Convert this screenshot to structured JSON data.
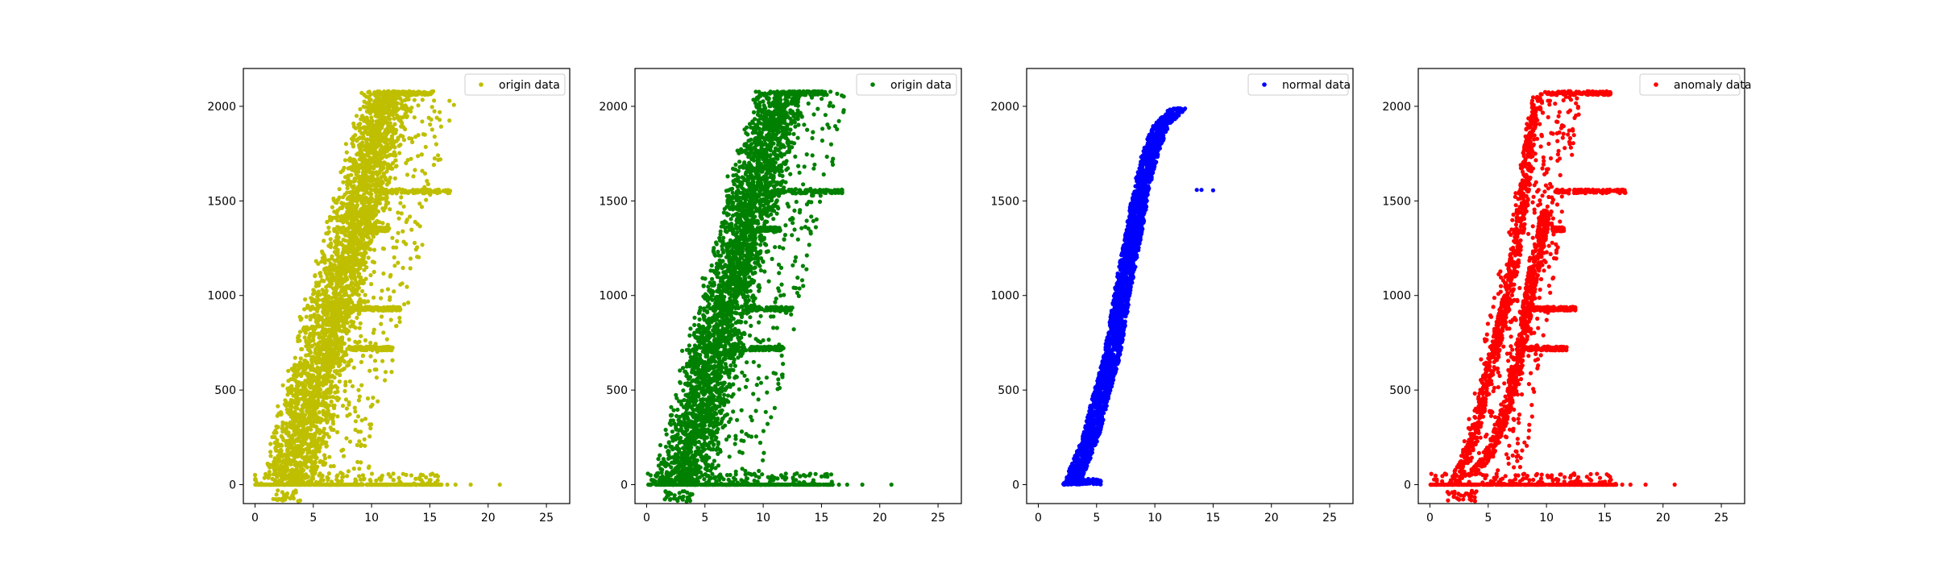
{
  "chart_data": [
    {
      "type": "scatter",
      "color": "#bfbf00",
      "legend": {
        "label": "origin data",
        "placement": "upper-right"
      },
      "xlim": [
        -1,
        27
      ],
      "ylim": [
        -100,
        2200
      ],
      "xticks": [
        0,
        5,
        10,
        15,
        20,
        25
      ],
      "yticks": [
        0,
        500,
        1000,
        1500,
        2000
      ],
      "grid": false,
      "series": [
        {
          "name": "origin data",
          "band": {
            "x_left_at_0": 0,
            "x_left_at_top": 9,
            "x_right_at_0": 6,
            "x_right_at_top": 14,
            "y_top": 2080
          },
          "zero_row": {
            "y": 0,
            "x_from": 0,
            "x_to": 16
          },
          "sparse_zero_x": [
            16.5,
            17.2,
            18.5,
            21.0
          ],
          "stripes": [
            {
              "y": 2070,
              "x_from": 10.5,
              "x_to": 15.3
            },
            {
              "y": 1550,
              "x_from": 10.5,
              "x_to": 16.8
            },
            {
              "y": 1350,
              "x_from": 9.5,
              "x_to": 11.5
            },
            {
              "y": 930,
              "x_from": 8.5,
              "x_to": 12.5
            },
            {
              "y": 720,
              "x_from": 8.0,
              "x_to": 11.8
            }
          ]
        }
      ]
    },
    {
      "type": "scatter",
      "color": "#008000",
      "legend": {
        "label": "origin data",
        "placement": "upper-right"
      },
      "xlim": [
        -1,
        27
      ],
      "ylim": [
        -100,
        2200
      ],
      "xticks": [
        0,
        5,
        10,
        15,
        20,
        25
      ],
      "yticks": [
        0,
        500,
        1000,
        1500,
        2000
      ],
      "grid": false,
      "series": [
        {
          "name": "origin data",
          "band": {
            "x_left_at_0": 0,
            "x_left_at_top": 9,
            "x_right_at_0": 6,
            "x_right_at_top": 14,
            "y_top": 2080
          },
          "zero_row": {
            "y": 0,
            "x_from": 0,
            "x_to": 16
          },
          "sparse_zero_x": [
            16.5,
            17.2,
            18.5,
            21.0
          ],
          "stripes": [
            {
              "y": 2070,
              "x_from": 10.5,
              "x_to": 15.3
            },
            {
              "y": 1550,
              "x_from": 10.5,
              "x_to": 16.8
            },
            {
              "y": 1350,
              "x_from": 9.5,
              "x_to": 11.5
            },
            {
              "y": 930,
              "x_from": 8.5,
              "x_to": 12.5
            },
            {
              "y": 720,
              "x_from": 8.0,
              "x_to": 11.8
            }
          ]
        }
      ]
    },
    {
      "type": "scatter",
      "color": "#0000ff",
      "legend": {
        "label": "normal data",
        "placement": "upper-right"
      },
      "xlim": [
        -1,
        27
      ],
      "ylim": [
        -100,
        2200
      ],
      "xticks": [
        0,
        5,
        10,
        15,
        20,
        25
      ],
      "yticks": [
        0,
        500,
        1000,
        1500,
        2000
      ],
      "grid": false,
      "series": [
        {
          "name": "normal data",
          "curve": [
            [
              2.8,
              0
            ],
            [
              3.5,
              100
            ],
            [
              4.5,
              250
            ],
            [
              5.3,
              450
            ],
            [
              6.2,
              650
            ],
            [
              6.8,
              850
            ],
            [
              7.3,
              1050
            ],
            [
              8.1,
              1300
            ],
            [
              8.8,
              1550
            ],
            [
              9.6,
              1750
            ],
            [
              10.5,
              1900
            ],
            [
              12.0,
              1990
            ]
          ],
          "curve_spread": 0.7,
          "extra_points": [
            [
              13.6,
              1558
            ],
            [
              14.0,
              1558
            ],
            [
              15.0,
              1556
            ]
          ]
        }
      ]
    },
    {
      "type": "scatter",
      "color": "#ff0000",
      "legend": {
        "label": "anomaly data",
        "placement": "upper-right"
      },
      "xlim": [
        -1,
        27
      ],
      "ylim": [
        -100,
        2200
      ],
      "xticks": [
        0,
        5,
        10,
        15,
        20,
        25
      ],
      "yticks": [
        0,
        500,
        1000,
        1500,
        2000
      ],
      "grid": false,
      "series": [
        {
          "name": "anomaly data",
          "left_branch": [
            [
              2.0,
              0
            ],
            [
              3.5,
              200
            ],
            [
              4.5,
              450
            ],
            [
              5.5,
              700
            ],
            [
              6.5,
              950
            ],
            [
              7.3,
              1200
            ],
            [
              8.0,
              1500
            ],
            [
              8.7,
              1900
            ],
            [
              9.3,
              2050
            ]
          ],
          "inner_branch": [
            [
              3.5,
              50
            ],
            [
              5.0,
              150
            ],
            [
              6.0,
              300
            ],
            [
              7.0,
              500
            ],
            [
              8.0,
              800
            ],
            [
              8.8,
              1100
            ],
            [
              9.5,
              1300
            ],
            [
              10.0,
              1450
            ]
          ],
          "zero_row": {
            "y": 0,
            "x_from": 0,
            "x_to": 16
          },
          "sparse_zero_x": [
            16.5,
            17.2,
            18.5,
            21.0
          ],
          "stripes": [
            {
              "y": 2070,
              "x_from": 9.5,
              "x_to": 15.5
            },
            {
              "y": 1550,
              "x_from": 10.5,
              "x_to": 16.8
            },
            {
              "y": 1350,
              "x_from": 10.5,
              "x_to": 11.5
            },
            {
              "y": 930,
              "x_from": 8.5,
              "x_to": 12.5
            },
            {
              "y": 720,
              "x_from": 8.0,
              "x_to": 11.8
            }
          ],
          "scatter_band": {
            "x_left_at_0": 2,
            "x_left_at_top": 9,
            "x_right_at_0": 8,
            "x_right_at_top": 13,
            "y_top": 2050
          }
        }
      ]
    }
  ]
}
